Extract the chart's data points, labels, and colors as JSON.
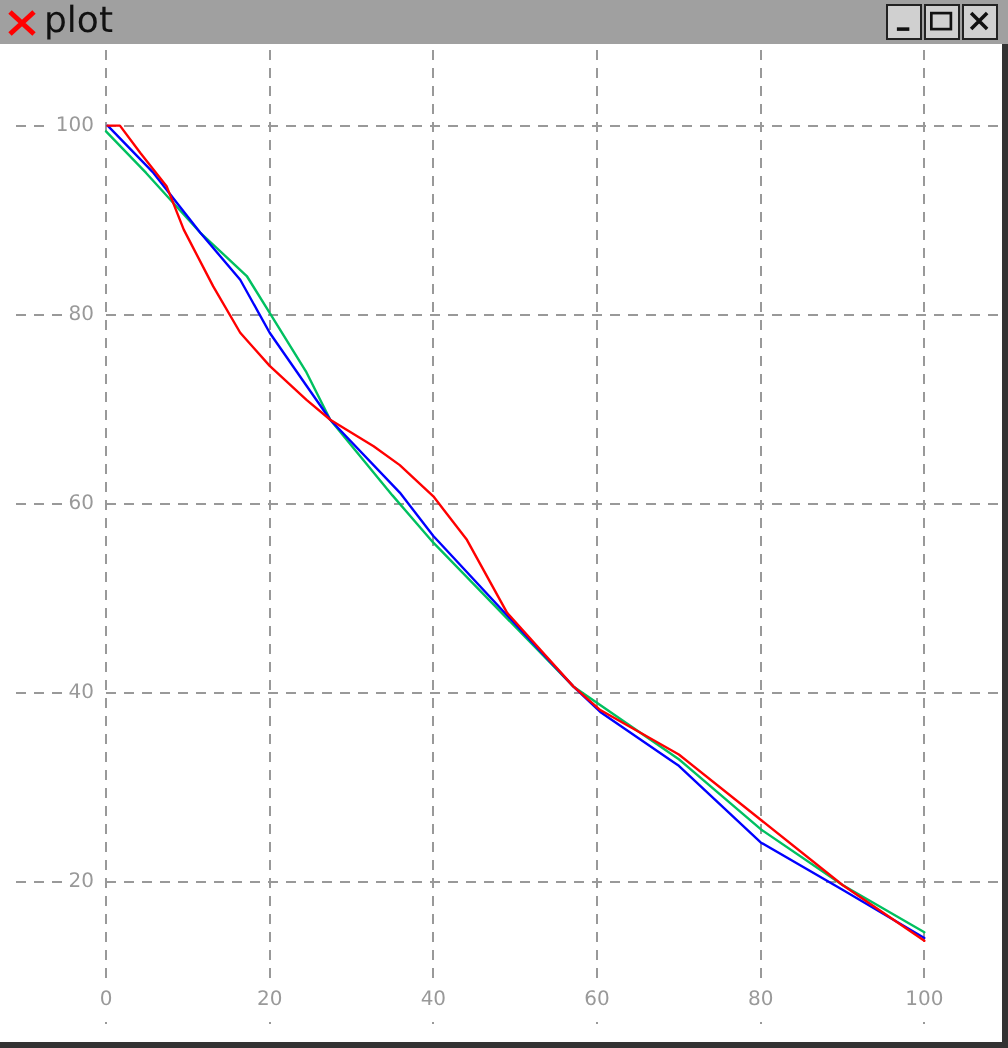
{
  "chart_data": {
    "type": "line",
    "title": "plot",
    "xlim": [
      -11,
      109
    ],
    "ylim": [
      5,
      108
    ],
    "xticks": [
      0,
      20,
      40,
      60,
      80,
      100
    ],
    "yticks": [
      20,
      40,
      60,
      80,
      100
    ],
    "grid": true,
    "legend": false,
    "marker": "none",
    "line_style": "solid",
    "series": [
      {
        "color": "#ff0000",
        "x": [
          0.2,
          1.7,
          4.2,
          7.4,
          9.5,
          13.1,
          16.4,
          20,
          24.5,
          27.4,
          32.7,
          35.9,
          40,
          44.1,
          49,
          57.1,
          60.4,
          70,
          80,
          90,
          100
        ],
        "values": [
          100,
          100,
          97.1,
          93.6,
          89,
          83,
          78.1,
          74.6,
          71,
          68.9,
          66.1,
          64.1,
          60.8,
          56.2,
          48.5,
          40.7,
          38.2,
          33.5,
          26.6,
          19.7,
          13.8
        ]
      },
      {
        "color": "#0000ff",
        "x": [
          0.2,
          5.8,
          11.5,
          16.4,
          20,
          24.5,
          27.4,
          35.9,
          40,
          57.1,
          60.4,
          70,
          80,
          90,
          100
        ],
        "values": [
          100,
          95,
          88.7,
          83.7,
          78.1,
          72.5,
          68.9,
          61.2,
          56.6,
          40.7,
          38,
          32.3,
          24.2,
          19.2,
          14.1
        ]
      },
      {
        "color": "#00c060",
        "x": [
          0,
          4.9,
          11.5,
          17.2,
          20,
          24.5,
          27.4,
          35,
          40,
          57.1,
          70,
          80,
          90,
          100
        ],
        "values": [
          99.4,
          95,
          88.7,
          84.1,
          80.2,
          73.9,
          68.9,
          60.9,
          55.9,
          40.7,
          33,
          25.6,
          19.7,
          14.7
        ]
      }
    ]
  }
}
